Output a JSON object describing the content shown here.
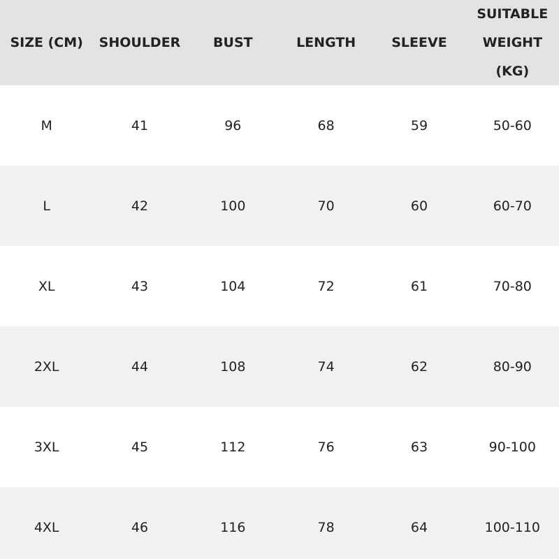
{
  "table": {
    "header": [
      "SIZE (CM)",
      "SHOULDER",
      "BUST",
      "LENGTH",
      "SLEEVE",
      "SUITABLE WEIGHT (KG)"
    ],
    "rows": [
      [
        "M",
        "41",
        "96",
        "68",
        "59",
        "50-60"
      ],
      [
        "L",
        "42",
        "100",
        "70",
        "60",
        "60-70"
      ],
      [
        "XL",
        "43",
        "104",
        "72",
        "61",
        "70-80"
      ],
      [
        "2XL",
        "44",
        "108",
        "74",
        "62",
        "80-90"
      ],
      [
        "3XL",
        "45",
        "112",
        "76",
        "63",
        "90-100"
      ],
      [
        "4XL",
        "46",
        "116",
        "78",
        "64",
        "100-110"
      ]
    ]
  }
}
